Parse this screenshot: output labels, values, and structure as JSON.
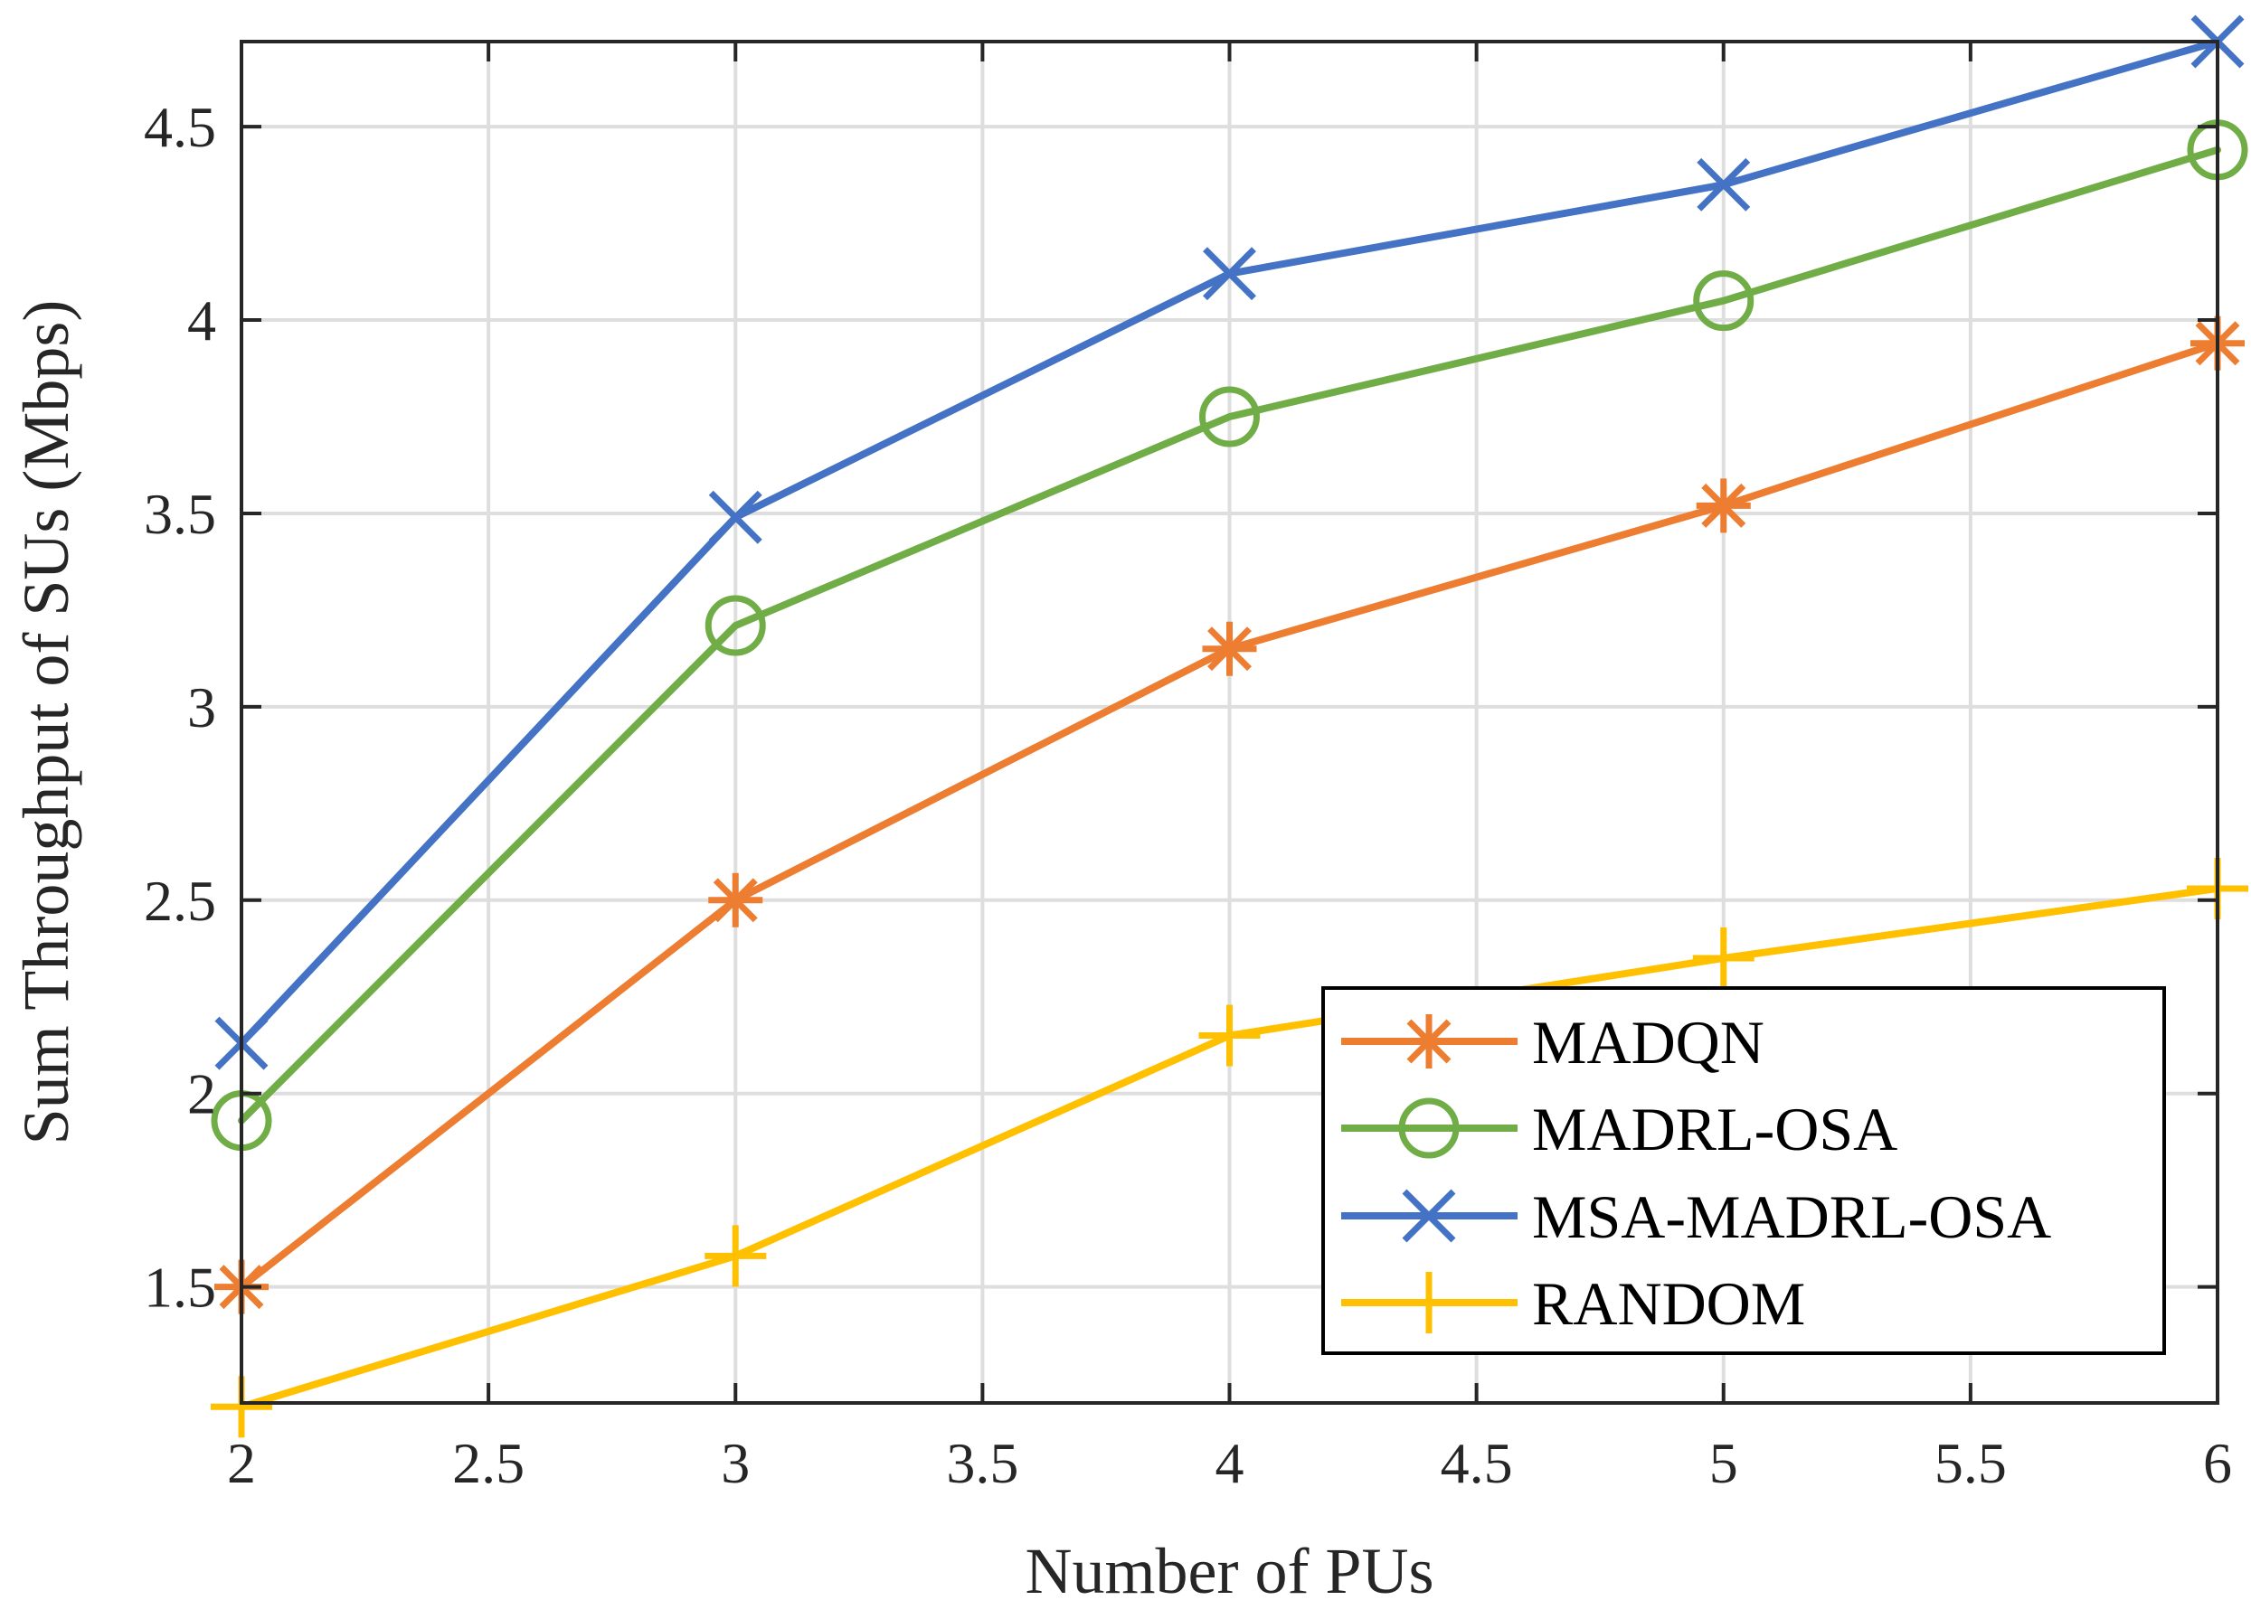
{
  "chart_data": {
    "type": "line",
    "title": "",
    "xlabel": "Number of PUs",
    "ylabel": "Sum Throughput of SUs (Mbps)",
    "xlim": [
      2,
      6
    ],
    "ylim": [
      1.2,
      4.72
    ],
    "xticks": [
      2,
      2.5,
      3,
      3.5,
      4,
      4.5,
      5,
      5.5,
      6
    ],
    "xtick_labels": [
      "2",
      "2.5",
      "3",
      "3.5",
      "4",
      "4.5",
      "5",
      "5.5",
      "6"
    ],
    "yticks": [
      1.5,
      2,
      2.5,
      3,
      3.5,
      4,
      4.5
    ],
    "ytick_labels": [
      "1.5",
      "2",
      "2.5",
      "3",
      "3.5",
      "4",
      "4.5"
    ],
    "grid": true,
    "legend_position": "bottom-right",
    "x": [
      2,
      3,
      4,
      5,
      6
    ],
    "series": [
      {
        "name": "MADQN",
        "color": "#ED7D31",
        "marker": "asterisk",
        "values": [
          1.5,
          2.5,
          3.15,
          3.52,
          3.94
        ]
      },
      {
        "name": "MADRL-OSA",
        "color": "#70AD47",
        "marker": "circle",
        "values": [
          1.93,
          3.21,
          3.75,
          4.05,
          4.44
        ]
      },
      {
        "name": "MSA-MADRL-OSA",
        "color": "#4472C4",
        "marker": "cross",
        "values": [
          2.13,
          3.49,
          4.12,
          4.35,
          4.72
        ]
      },
      {
        "name": "RANDOM",
        "color": "#FFC000",
        "marker": "plus",
        "values": [
          1.19,
          1.58,
          2.15,
          2.35,
          2.53
        ]
      }
    ]
  }
}
